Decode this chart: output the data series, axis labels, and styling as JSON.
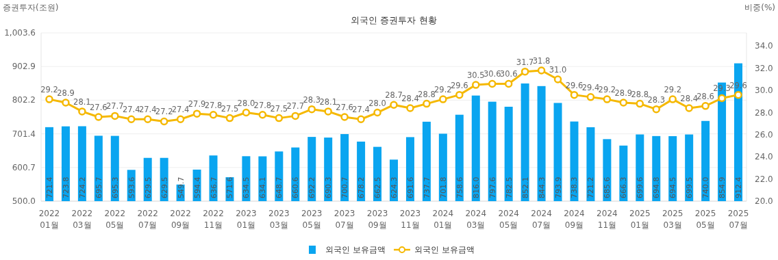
{
  "chart_data": {
    "type": "bar",
    "title": "외국인 증권투자 현황",
    "ylabel": "증권투자(조원)",
    "y2label": "비중(%)",
    "categories": [
      "2022\n01월",
      null,
      "2022\n03월",
      null,
      "2022\n05월",
      null,
      "2022\n07월",
      null,
      "2022\n09월",
      null,
      "2022\n11월",
      null,
      "2023\n01월",
      null,
      "2023\n03월",
      null,
      "2023\n05월",
      null,
      "2023\n07월",
      null,
      "2023\n09월",
      null,
      "2023\n11월",
      null,
      "2024\n01월",
      null,
      "2024\n03월",
      null,
      "2024\n05월",
      null,
      "2024\n07월",
      null,
      "2024\n09월",
      null,
      "2024\n11월",
      null,
      "2025\n01월",
      null,
      "2025\n03월",
      null,
      "2025\n05월",
      null,
      "2025\n07월"
    ],
    "series": [
      {
        "name": "외국인 보유금액",
        "color": "#0aa5f0",
        "values": [
          721.4,
          723.8,
          724.2,
          695.7,
          695.3,
          593.6,
          629.5,
          629.5,
          549.7,
          594.4,
          636.7,
          571.6,
          634.5,
          634.1,
          648.7,
          660.6,
          692.2,
          690.3,
          700.7,
          678.2,
          662.5,
          624.3,
          691.6,
          737.7,
          701.8,
          758.6,
          816.0,
          797.6,
          782.5,
          852.1,
          844.3,
          793.9,
          738.3,
          721.2,
          685.6,
          666.3,
          699.6,
          694.8,
          694.5,
          699.5,
          740.0,
          854.9,
          912.4
        ],
        "value_labels": [
          "721.4",
          "723.8",
          "724.2",
          "695.7",
          "695.3",
          "593.6",
          "629.5",
          "629.5",
          "549.7",
          "594.4",
          "636.7",
          "571.6",
          "634.5",
          "634.1",
          "648.7",
          "660.6",
          "692.2",
          "690.3",
          "700.7",
          "678.2",
          "662.5",
          "624.3",
          "691.6",
          "737.7",
          "701.8",
          "758.6",
          "816.0",
          "797.6",
          "782.5",
          "852.1",
          "844.3",
          "793.9",
          "738.3",
          "721.2",
          "685.6",
          "666.3",
          "699.6",
          "694.8",
          "694.5",
          "699.5",
          "740.0",
          "854.9",
          "912.4"
        ]
      },
      {
        "type": "line",
        "name": "외국인 보유금액",
        "color": "#f5b800",
        "axis": "y2",
        "marker": "circle",
        "values": [
          29.2,
          28.9,
          28.1,
          27.6,
          27.7,
          27.4,
          27.4,
          27.2,
          27.4,
          27.9,
          27.8,
          27.5,
          28.0,
          27.8,
          27.5,
          27.7,
          28.3,
          28.1,
          27.6,
          27.4,
          28.0,
          28.7,
          28.4,
          28.8,
          29.2,
          29.6,
          30.5,
          30.6,
          30.6,
          31.7,
          31.8,
          31.0,
          29.6,
          29.4,
          29.2,
          28.9,
          28.8,
          28.3,
          29.2,
          28.4,
          28.6,
          29.3,
          29.6
        ],
        "value_labels": [
          "29.2",
          "28.9",
          "28.1",
          "27.6",
          "27.7",
          "27.4",
          "27.4",
          "27.2",
          "27.4",
          "27.9",
          "27.8",
          "27.5",
          "28.0",
          "27.8",
          "27.5",
          "27.7",
          "28.3",
          "28.1",
          "27.6",
          "27.4",
          "28.0",
          "28.7",
          "28.4",
          "28.8",
          "29.2",
          "29.6",
          "30.5",
          "30.6",
          "30.6",
          "31.7",
          "31.8",
          "31.0",
          "29.6",
          "29.4",
          "29.2",
          "28.9",
          "28.8",
          "28.3",
          "29.2",
          "28.4",
          "28.6",
          "29.3",
          "29.6"
        ]
      }
    ],
    "ylim": [
      500,
      1003.6
    ],
    "yticks": [
      {
        "value": 500,
        "label": "500.0"
      },
      600.7,
      701.4,
      802.2,
      902.9,
      {
        "value": 1003.6,
        "label": "1,003.6"
      }
    ],
    "y2lim": [
      20,
      35.2
    ],
    "y2ticks": [
      {
        "value": 20,
        "label": "20.0"
      },
      {
        "value": 22,
        "label": "22.0"
      },
      {
        "value": 24,
        "label": "24.0"
      },
      {
        "value": 26,
        "label": "26.0"
      },
      {
        "value": 28,
        "label": "28.0"
      },
      {
        "value": 30,
        "label": "30.0"
      },
      {
        "value": 32,
        "label": "32.0"
      },
      {
        "value": 34,
        "label": "34.0"
      }
    ],
    "grid": "y",
    "legend": "bottom"
  }
}
